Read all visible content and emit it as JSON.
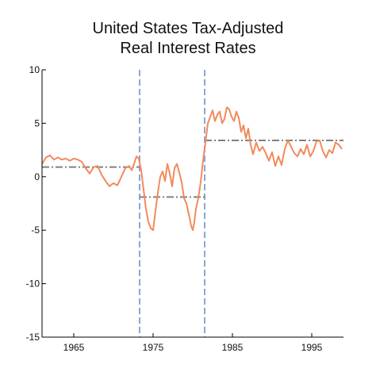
{
  "chart_data": {
    "type": "line",
    "title_lines": [
      "United States Tax-Adjusted",
      "Real Interest Rates"
    ],
    "xlim": [
      1961,
      1999
    ],
    "ylim": [
      -15,
      10
    ],
    "x_ticks": [
      1965,
      1975,
      1985,
      1995
    ],
    "y_ticks": [
      10,
      5,
      0,
      -5,
      -10,
      -15
    ],
    "grid": false,
    "colors": {
      "series": "#f28a5c",
      "regime_boundary": "#8ea6d6",
      "regime_mean": "#808080",
      "axis": "#000000"
    },
    "series": [
      {
        "x": [
          1961.0,
          1961.5,
          1962.0,
          1962.5,
          1963.0,
          1963.5,
          1964.0,
          1964.5,
          1965.0,
          1965.5,
          1966.0,
          1966.5,
          1967.0,
          1967.5,
          1968.0,
          1968.5,
          1969.0,
          1969.5,
          1970.0,
          1970.5,
          1971.0,
          1971.5,
          1972.0,
          1972.3,
          1972.6,
          1972.9,
          1973.2,
          1973.5,
          1973.8,
          1974.1,
          1974.4,
          1974.7,
          1975.0,
          1975.3,
          1975.6,
          1975.9,
          1976.2,
          1976.5,
          1976.8,
          1977.1,
          1977.4,
          1977.7,
          1978.0,
          1978.3,
          1978.6,
          1978.9,
          1979.2,
          1979.5,
          1979.8,
          1980.0,
          1980.2,
          1980.4,
          1980.7,
          1981.0,
          1981.3,
          1981.6,
          1981.9,
          1982.2,
          1982.5,
          1982.8,
          1983.1,
          1983.4,
          1983.7,
          1984.0,
          1984.3,
          1984.6,
          1984.9,
          1985.2,
          1985.5,
          1985.8,
          1986.1,
          1986.4,
          1986.7,
          1987.0,
          1987.3,
          1987.6,
          1988.0,
          1988.4,
          1988.8,
          1989.2,
          1989.6,
          1990.0,
          1990.4,
          1990.8,
          1991.2,
          1991.6,
          1992.0,
          1992.4,
          1992.8,
          1993.2,
          1993.6,
          1994.0,
          1994.4,
          1994.8,
          1995.2,
          1995.6,
          1996.0,
          1996.4,
          1996.8,
          1997.2,
          1997.6,
          1998.0,
          1998.4,
          1998.8
        ],
        "y": [
          1.2,
          1.8,
          2.0,
          1.6,
          1.8,
          1.6,
          1.7,
          1.5,
          1.7,
          1.6,
          1.4,
          0.8,
          0.3,
          0.9,
          1.0,
          0.2,
          -0.4,
          -0.9,
          -0.6,
          -0.8,
          0.0,
          0.8,
          1.0,
          0.6,
          1.2,
          1.9,
          1.7,
          0.6,
          -1.2,
          -3.0,
          -4.2,
          -4.8,
          -5.0,
          -3.2,
          -1.5,
          0.0,
          0.5,
          -0.4,
          1.2,
          0.3,
          -0.9,
          0.8,
          1.2,
          0.4,
          -0.5,
          -2.0,
          -2.5,
          -3.5,
          -4.6,
          -5.0,
          -4.2,
          -3.0,
          -2.0,
          -0.5,
          1.5,
          3.2,
          5.0,
          5.6,
          6.2,
          5.2,
          5.8,
          6.1,
          5.0,
          5.4,
          6.5,
          6.3,
          5.6,
          5.2,
          6.1,
          5.5,
          4.2,
          4.8,
          3.6,
          4.5,
          3.0,
          2.1,
          3.2,
          2.4,
          2.8,
          2.2,
          1.5,
          2.3,
          1.0,
          1.9,
          1.1,
          2.6,
          3.4,
          2.8,
          2.2,
          1.9,
          2.6,
          2.1,
          3.0,
          1.9,
          2.4,
          3.3,
          3.4,
          2.4,
          1.8,
          2.5,
          2.2,
          3.2,
          3.0,
          2.6
        ]
      }
    ],
    "regime_boundaries_x": [
      1973.3,
      1981.5
    ],
    "regime_means": [
      {
        "x_start": 1961,
        "x_end": 1973.3,
        "y": 0.9
      },
      {
        "x_start": 1973.3,
        "x_end": 1981.5,
        "y": -1.9
      },
      {
        "x_start": 1981.5,
        "x_end": 1999,
        "y": 3.4
      }
    ]
  }
}
